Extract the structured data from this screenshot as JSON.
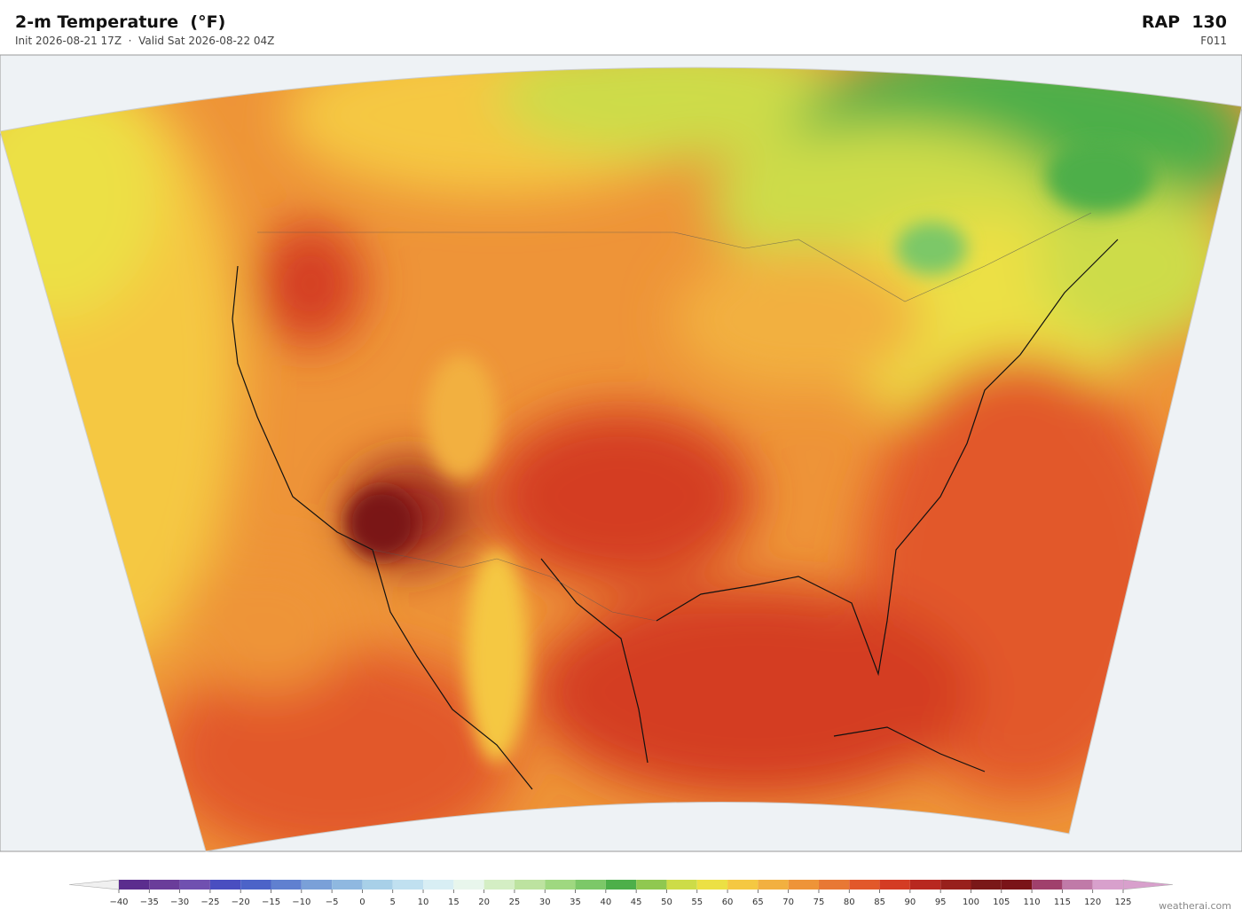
{
  "header": {
    "title": "2-m Temperature  (°F)",
    "subtitle": "Init 2026-08-21 17Z  ·  Valid Sat 2026-08-22 04Z",
    "model": "RAP  130",
    "forecast_hour": "F011"
  },
  "colorbar": {
    "ticks": [
      {
        "value": -40,
        "label": "−40"
      },
      {
        "value": -35,
        "label": "−35"
      },
      {
        "value": -30,
        "label": "−30"
      },
      {
        "value": -25,
        "label": "−25"
      },
      {
        "value": -20,
        "label": "−20"
      },
      {
        "value": -15,
        "label": "−15"
      },
      {
        "value": -10,
        "label": "−10"
      },
      {
        "value": -5,
        "label": "−5"
      },
      0,
      5,
      10,
      15,
      20,
      25,
      30,
      35,
      40,
      45,
      50,
      55,
      60,
      65,
      70,
      75,
      80,
      85,
      90,
      95,
      100,
      105,
      110,
      115,
      120,
      125
    ],
    "colors": [
      "#5b2d8e",
      "#6a3d9a",
      "#7050b0",
      "#4a4ec0",
      "#4c63c8",
      "#6080d0",
      "#7aa0d8",
      "#8fb8e0",
      "#a8d0e8",
      "#c0e0f0",
      "#d8eef4",
      "#e8f6ec",
      "#d4eec4",
      "#bde3a0",
      "#9fd880",
      "#7cc868",
      "#4daf4a",
      "#90c850",
      "#cddc48",
      "#ece044",
      "#f5c842",
      "#f2b040",
      "#ee9438",
      "#e87834",
      "#e2582a",
      "#d43c24",
      "#b82820",
      "#98201c",
      "#7a1818",
      "#7a1418",
      "#a0406c",
      "#c07aa8",
      "#d8a0cc"
    ]
  },
  "footer": {
    "credit": "weatherai.com"
  }
}
